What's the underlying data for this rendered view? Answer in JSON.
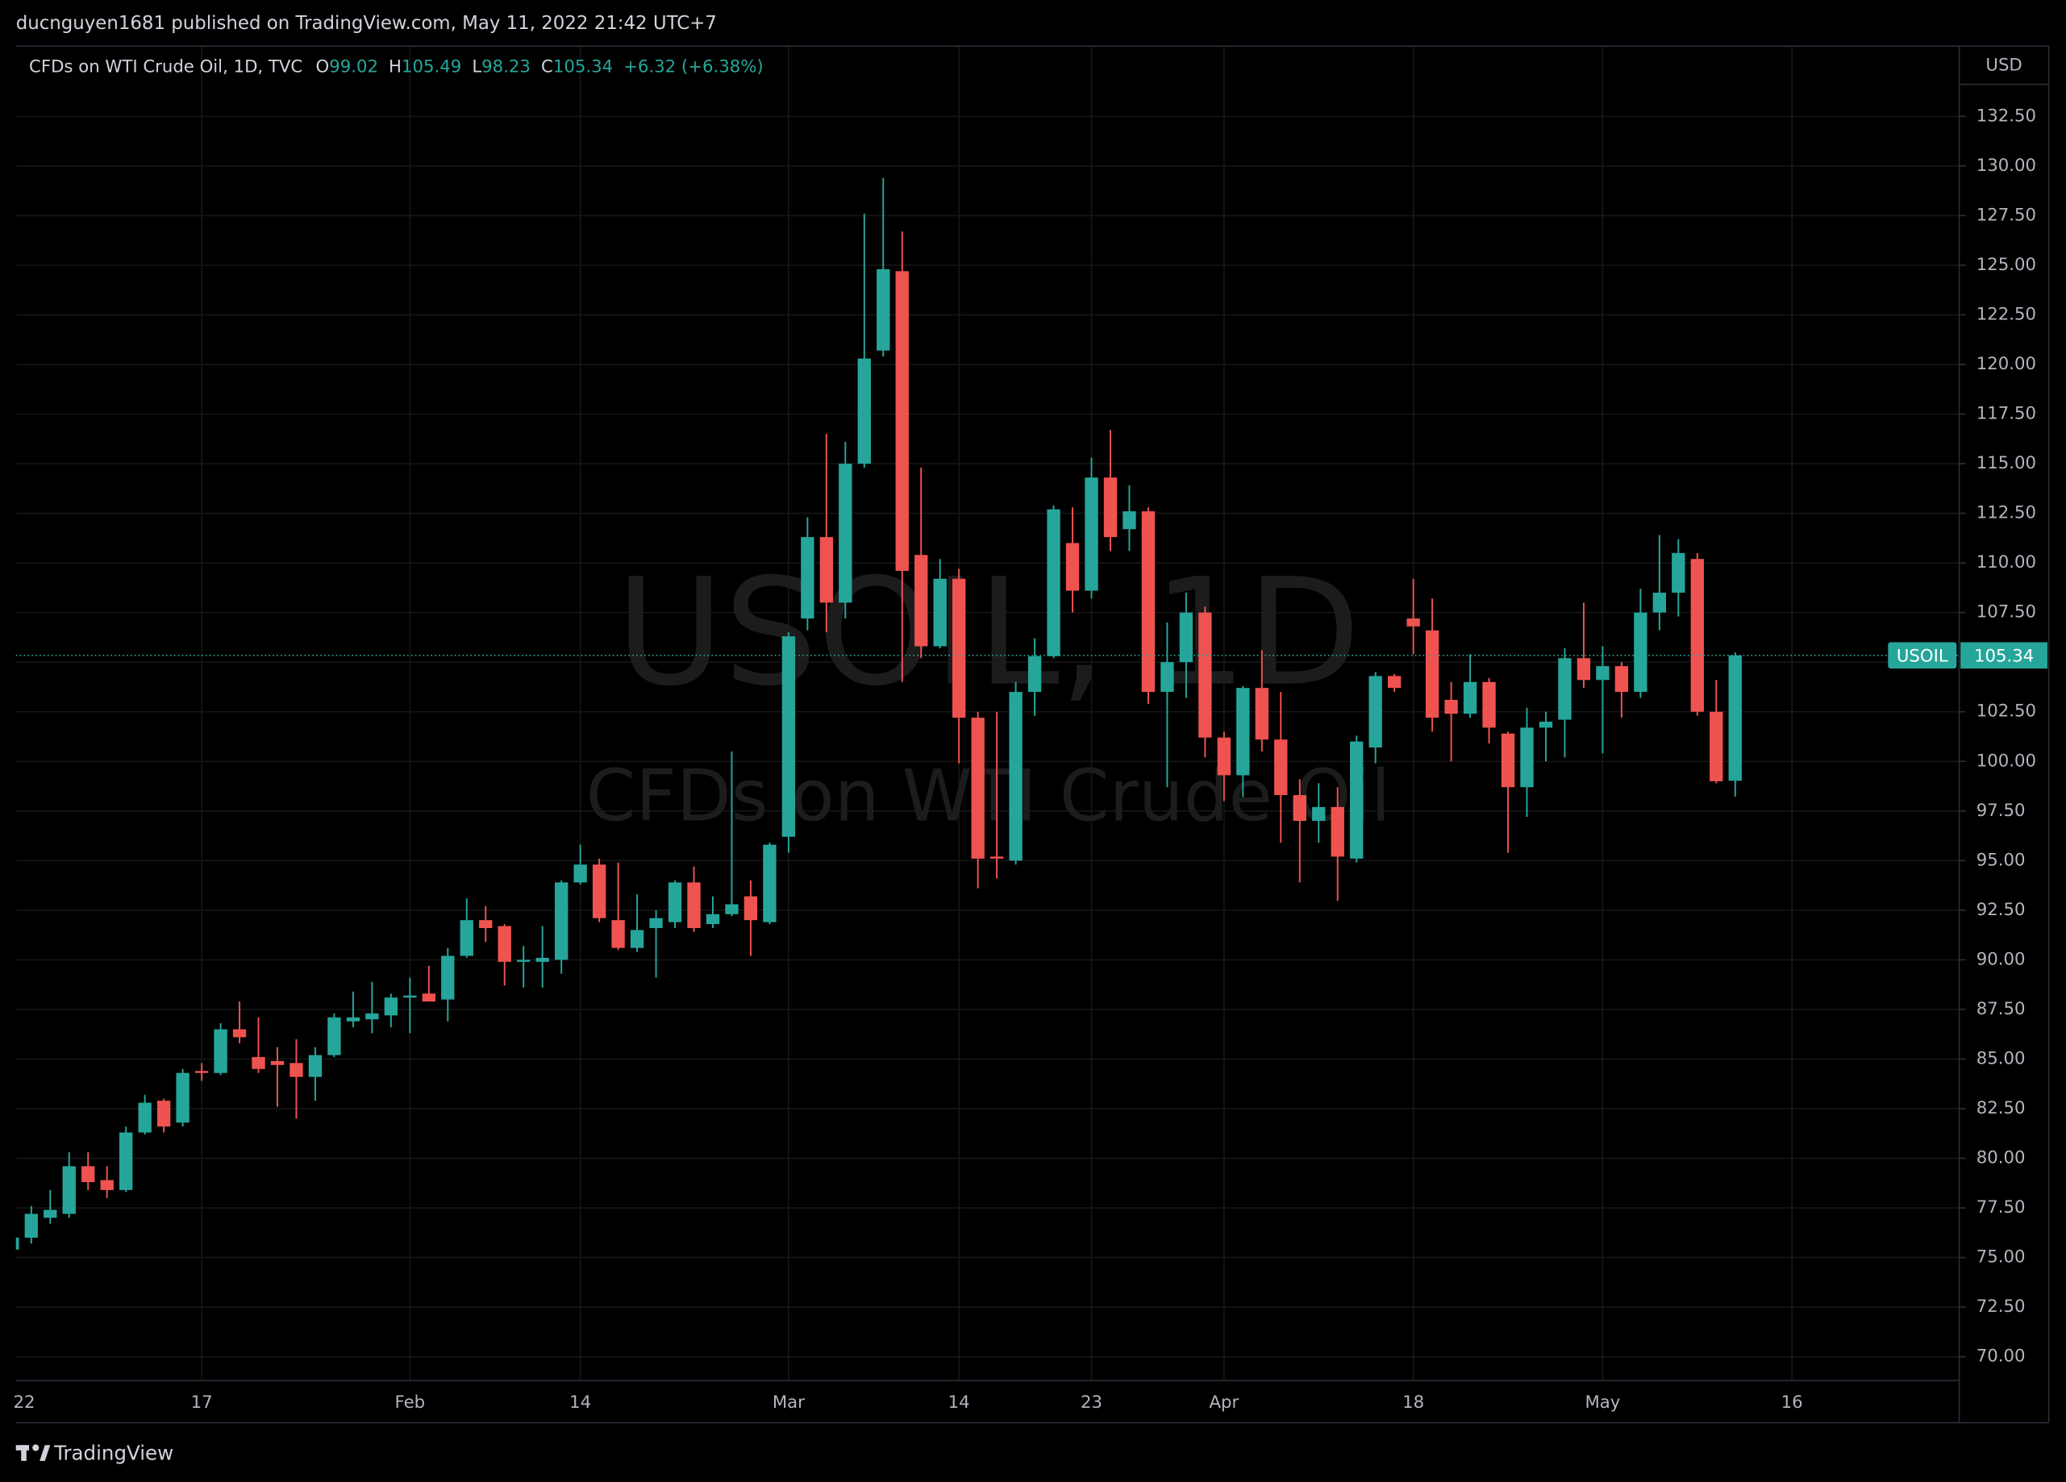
{
  "page": {
    "published": "ducnguyen1681 published on TradingView.com, May 11, 2022 21:42 UTC+7",
    "brand": "TradingView"
  },
  "chart_data": {
    "type": "candlestick",
    "title": "CFDs on WTI Crude Oil, 1D, TVC",
    "ohlc_letters": [
      "O",
      "H",
      "L",
      "C"
    ],
    "change": "+6.32 (+6.38%)",
    "watermark": "USOIL, 1D",
    "watermark_subtitle": "CFDs on WTI Crude Oil",
    "symbol": "USOIL",
    "currency": "USD",
    "up_color": "#26a69a",
    "down_color": "#ef5350",
    "grid": true,
    "categories": [
      "22",
      null,
      null,
      null,
      null,
      null,
      null,
      null,
      null,
      null,
      "17",
      null,
      null,
      null,
      null,
      null,
      null,
      null,
      null,
      null,
      null,
      "Feb",
      null,
      null,
      null,
      null,
      null,
      null,
      null,
      null,
      "14",
      null,
      null,
      null,
      null,
      null,
      null,
      null,
      null,
      null,
      null,
      "Mar",
      null,
      null,
      null,
      null,
      null,
      null,
      null,
      null,
      "14",
      null,
      null,
      null,
      null,
      null,
      null,
      "23",
      null,
      null,
      null,
      null,
      null,
      null,
      "Apr",
      null,
      null,
      null,
      null,
      null,
      null,
      null,
      null,
      null,
      "18",
      null,
      null,
      null,
      null,
      null,
      null,
      null,
      null,
      null,
      "May",
      null,
      null,
      null,
      null,
      null,
      null,
      null,
      null,
      null,
      "16"
    ],
    "open": [
      75.4,
      76.0,
      77.0,
      77.2,
      79.6,
      78.9,
      78.4,
      81.3,
      82.9,
      81.8,
      84.4,
      84.3,
      86.5,
      85.1,
      84.9,
      84.8,
      84.1,
      85.2,
      86.9,
      87.0,
      87.2,
      88.1,
      88.3,
      88.0,
      90.2,
      92.0,
      91.7,
      89.9,
      89.9,
      90.0,
      93.9,
      94.8,
      92.0,
      90.6,
      91.6,
      91.9,
      93.9,
      91.8,
      92.3,
      93.2,
      91.9,
      96.2,
      107.2,
      111.3,
      108.0,
      115.0,
      120.7,
      124.7,
      110.4,
      105.8,
      109.2,
      102.2,
      95.2,
      95.0,
      103.5,
      105.3,
      111.0,
      108.6,
      114.3,
      111.7,
      112.6,
      103.5,
      105.0,
      107.5,
      101.2,
      99.3,
      103.7,
      101.1,
      98.3,
      97.0,
      97.7,
      95.1,
      100.7,
      104.3,
      107.2,
      106.6,
      103.1,
      102.4,
      104.0,
      101.4,
      98.7,
      101.7,
      102.1,
      105.2,
      104.1,
      104.8,
      103.5,
      107.5,
      108.5,
      110.2,
      102.5,
      99.02,
      null,
      null,
      null
    ],
    "high": [
      76.3,
      77.6,
      78.4,
      80.3,
      80.3,
      79.6,
      81.6,
      83.2,
      83.0,
      84.5,
      84.8,
      86.8,
      87.9,
      87.1,
      85.6,
      86.0,
      85.6,
      87.3,
      88.4,
      88.9,
      88.3,
      89.1,
      89.7,
      90.6,
      93.1,
      92.7,
      91.8,
      90.7,
      91.7,
      94.0,
      95.8,
      95.1,
      94.9,
      93.3,
      92.5,
      94.0,
      94.7,
      93.2,
      100.5,
      94.0,
      95.9,
      106.5,
      112.3,
      116.5,
      116.1,
      127.6,
      129.4,
      126.7,
      114.8,
      110.2,
      109.7,
      102.5,
      102.5,
      104.0,
      106.2,
      112.9,
      112.8,
      115.3,
      116.7,
      113.9,
      112.8,
      107.0,
      108.5,
      107.8,
      101.5,
      103.8,
      105.6,
      103.5,
      99.1,
      98.9,
      98.7,
      101.3,
      104.5,
      104.4,
      109.2,
      108.2,
      104.0,
      105.4,
      104.2,
      101.5,
      102.7,
      102.5,
      105.7,
      108.0,
      105.8,
      105.0,
      108.7,
      111.4,
      111.2,
      110.5,
      104.1,
      105.49,
      null,
      null,
      null
    ],
    "low": [
      75.2,
      75.7,
      76.7,
      77.0,
      78.4,
      78.0,
      78.3,
      81.2,
      81.3,
      81.6,
      83.9,
      84.2,
      85.8,
      84.3,
      82.6,
      82.0,
      82.9,
      85.1,
      86.6,
      86.3,
      86.6,
      86.3,
      87.9,
      86.9,
      90.1,
      90.9,
      88.7,
      88.6,
      88.6,
      89.3,
      93.8,
      91.9,
      90.5,
      90.4,
      89.1,
      91.6,
      91.4,
      91.6,
      92.2,
      90.2,
      91.8,
      95.4,
      106.6,
      106.5,
      107.2,
      114.8,
      120.4,
      104.0,
      105.2,
      105.7,
      99.9,
      93.6,
      94.1,
      94.8,
      102.3,
      105.2,
      107.5,
      108.2,
      110.6,
      110.6,
      102.9,
      98.7,
      103.2,
      100.2,
      98.0,
      98.2,
      100.5,
      95.9,
      93.9,
      95.9,
      92.97,
      94.9,
      99.9,
      103.5,
      105.4,
      101.5,
      100.0,
      102.2,
      100.9,
      95.4,
      97.2,
      100.0,
      100.2,
      103.7,
      100.4,
      102.2,
      103.2,
      106.6,
      107.3,
      102.3,
      98.9,
      98.23,
      null,
      null,
      null
    ],
    "close": [
      76.0,
      77.2,
      77.4,
      79.6,
      78.8,
      78.4,
      81.3,
      82.8,
      81.6,
      84.3,
      84.3,
      86.5,
      86.1,
      84.5,
      84.7,
      84.1,
      85.2,
      87.1,
      87.1,
      87.3,
      88.1,
      88.2,
      87.9,
      90.2,
      92.0,
      91.6,
      89.9,
      90.0,
      90.1,
      93.9,
      94.8,
      92.1,
      90.6,
      91.5,
      92.1,
      93.9,
      91.6,
      92.3,
      92.8,
      92.0,
      95.8,
      106.3,
      111.3,
      108.0,
      115.0,
      120.3,
      124.8,
      109.6,
      105.8,
      109.2,
      102.2,
      95.1,
      95.1,
      103.5,
      105.3,
      112.7,
      108.6,
      114.3,
      111.3,
      112.6,
      103.5,
      105.0,
      107.5,
      101.2,
      99.3,
      103.7,
      101.1,
      98.3,
      97.0,
      97.7,
      95.2,
      101.0,
      104.3,
      103.7,
      106.8,
      102.2,
      102.4,
      104.0,
      101.7,
      98.7,
      101.7,
      102.0,
      105.2,
      104.1,
      104.8,
      103.5,
      107.5,
      108.5,
      110.5,
      102.5,
      99.0,
      105.34,
      null,
      null,
      null
    ],
    "ylim": [
      68.8,
      136.04
    ],
    "yticks": [
      {
        "value": 70,
        "label": "70.00"
      },
      {
        "value": 72.5,
        "label": "72.50"
      },
      {
        "value": 75,
        "label": "75.00"
      },
      {
        "value": 77.5,
        "label": "77.50"
      },
      {
        "value": 80,
        "label": "80.00"
      },
      {
        "value": 82.5,
        "label": "82.50"
      },
      {
        "value": 85,
        "label": "85.00"
      },
      {
        "value": 87.5,
        "label": "87.50"
      },
      {
        "value": 90,
        "label": "90.00"
      },
      {
        "value": 92.5,
        "label": "92.50"
      },
      {
        "value": 95,
        "label": "95.00"
      },
      {
        "value": 97.5,
        "label": "97.50"
      },
      {
        "value": 100,
        "label": "100.00"
      },
      {
        "value": 102.5,
        "label": "102.50"
      },
      {
        "value": 105,
        "label": "105.00"
      },
      {
        "value": 107.5,
        "label": "107.50"
      },
      {
        "value": 110,
        "label": "110.00"
      },
      {
        "value": 112.5,
        "label": "112.50"
      },
      {
        "value": 115,
        "label": "115.00"
      },
      {
        "value": 117.5,
        "label": "117.50"
      },
      {
        "value": 120,
        "label": "120.00"
      },
      {
        "value": 122.5,
        "label": "122.50"
      },
      {
        "value": 125,
        "label": "125.00"
      },
      {
        "value": 127.5,
        "label": "127.50"
      },
      {
        "value": 130,
        "label": "130.00"
      },
      {
        "value": 132.5,
        "label": "132.50"
      }
    ]
  }
}
